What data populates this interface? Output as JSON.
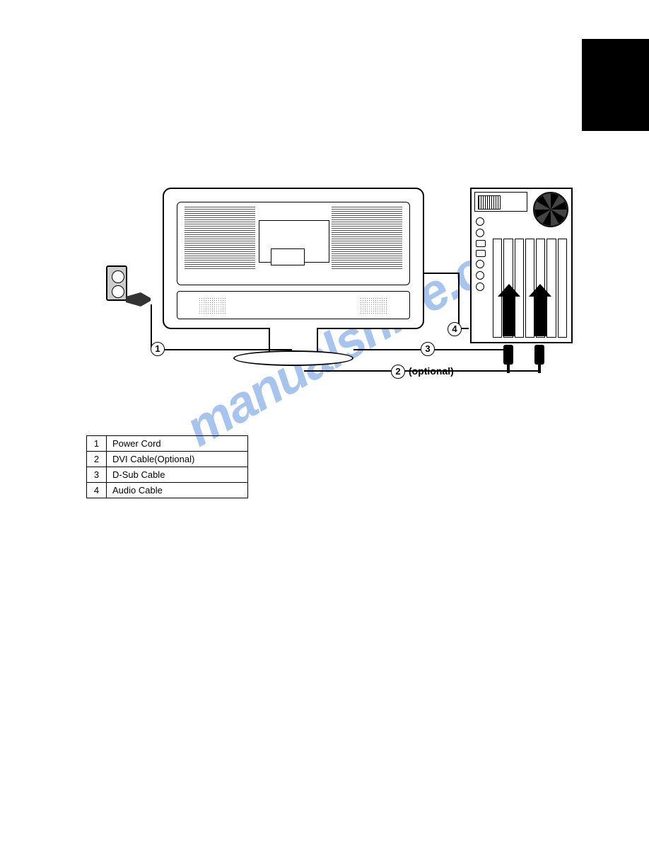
{
  "watermark": {
    "text": "manualshive.com",
    "color": "#3b7dd8",
    "opacity": 0.45,
    "fontsize": 72,
    "rotation_deg": -30
  },
  "diagram": {
    "callouts": {
      "c1": "1",
      "c2": "2",
      "c3": "3",
      "c4": "4"
    },
    "optional_label": "(optional)"
  },
  "table": {
    "rows": [
      {
        "num": "1",
        "label": "Power Cord"
      },
      {
        "num": "2",
        "label": "DVI Cable(Optional)"
      },
      {
        "num": "3",
        "label": "D-Sub Cable"
      },
      {
        "num": "4",
        "label": "Audio Cable"
      }
    ]
  },
  "colors": {
    "background": "#ffffff",
    "black": "#000000",
    "watermark": "#3b7dd8"
  }
}
